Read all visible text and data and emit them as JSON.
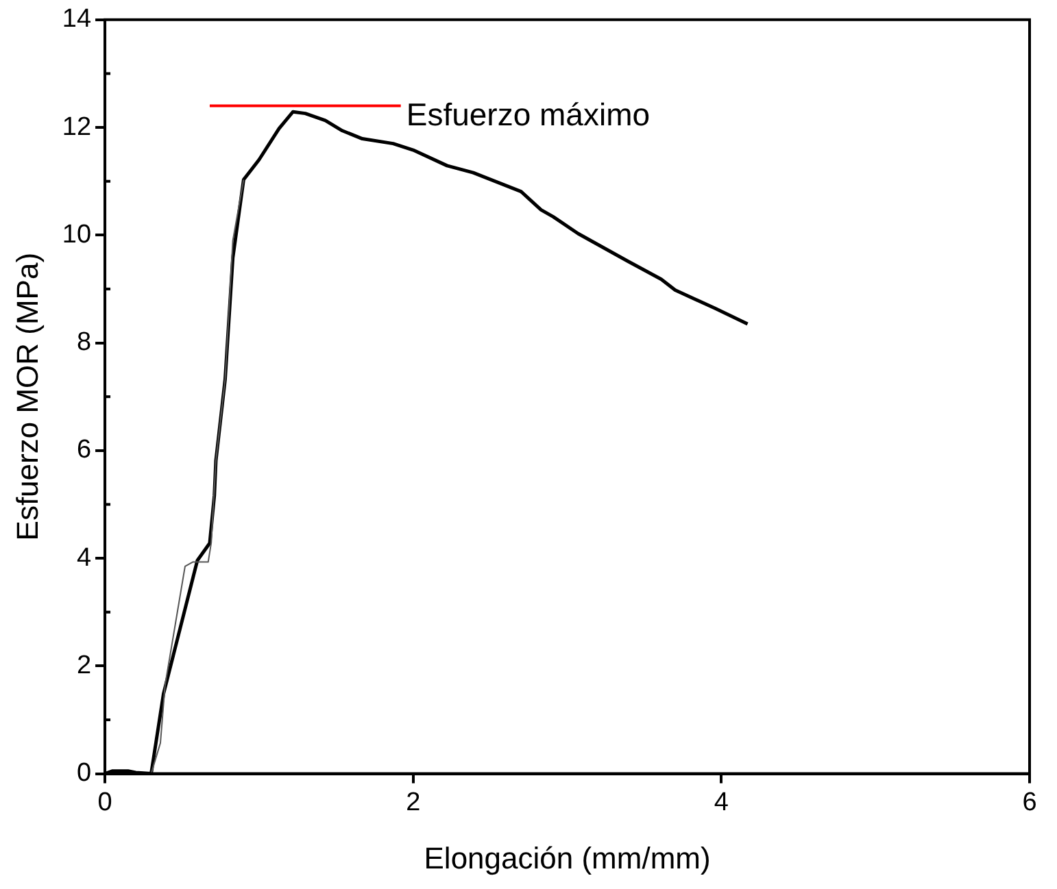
{
  "chart_data": {
    "type": "line",
    "xlabel": "Elongación (mm/mm)",
    "ylabel": "Esfuerzo MOR (MPa)",
    "xlim": [
      0,
      6
    ],
    "xticks": [
      0,
      2,
      4,
      6
    ],
    "ylim": [
      0,
      14
    ],
    "yticks": [
      0,
      2,
      4,
      6,
      8,
      10,
      12,
      14
    ],
    "grid": false,
    "legend": false,
    "marker": "none",
    "line_style": "solid",
    "series": [
      {
        "color": "#555555",
        "x": [
          0.3,
          0.36,
          0.39,
          0.52,
          0.57,
          0.67,
          0.69,
          0.72,
          0.78,
          0.83,
          0.9
        ],
        "values": [
          0,
          0.57,
          1.64,
          3.85,
          3.93,
          3.93,
          4.29,
          5.81,
          7.32,
          9.9,
          11.03
        ]
      },
      {
        "color": "#000000",
        "x": [
          0,
          0.05,
          0.15,
          0.2,
          0.3,
          0.38,
          0.6,
          0.68,
          0.71,
          0.72,
          0.78,
          0.83,
          0.9,
          1.0,
          1.13,
          1.22,
          1.3,
          1.43,
          1.54,
          1.67,
          1.87,
          2.0,
          2.22,
          2.39,
          2.7,
          2.83,
          2.91,
          3.07,
          3.39,
          3.61,
          3.7,
          3.96,
          4.17
        ],
        "values": [
          0,
          0.05,
          0.05,
          0.02,
          0,
          1.48,
          3.96,
          4.28,
          5.16,
          5.81,
          7.32,
          9.58,
          11.03,
          11.4,
          11.98,
          12.29,
          12.26,
          12.13,
          11.94,
          11.79,
          11.7,
          11.58,
          11.29,
          11.16,
          10.81,
          10.47,
          10.34,
          10.03,
          9.52,
          9.18,
          8.98,
          8.64,
          8.35
        ]
      },
      {
        "name": "Esfuerzo máximo",
        "color": "#ff0000",
        "x": [
          0.68,
          1.92
        ],
        "values": [
          12.4,
          12.4
        ]
      }
    ]
  }
}
